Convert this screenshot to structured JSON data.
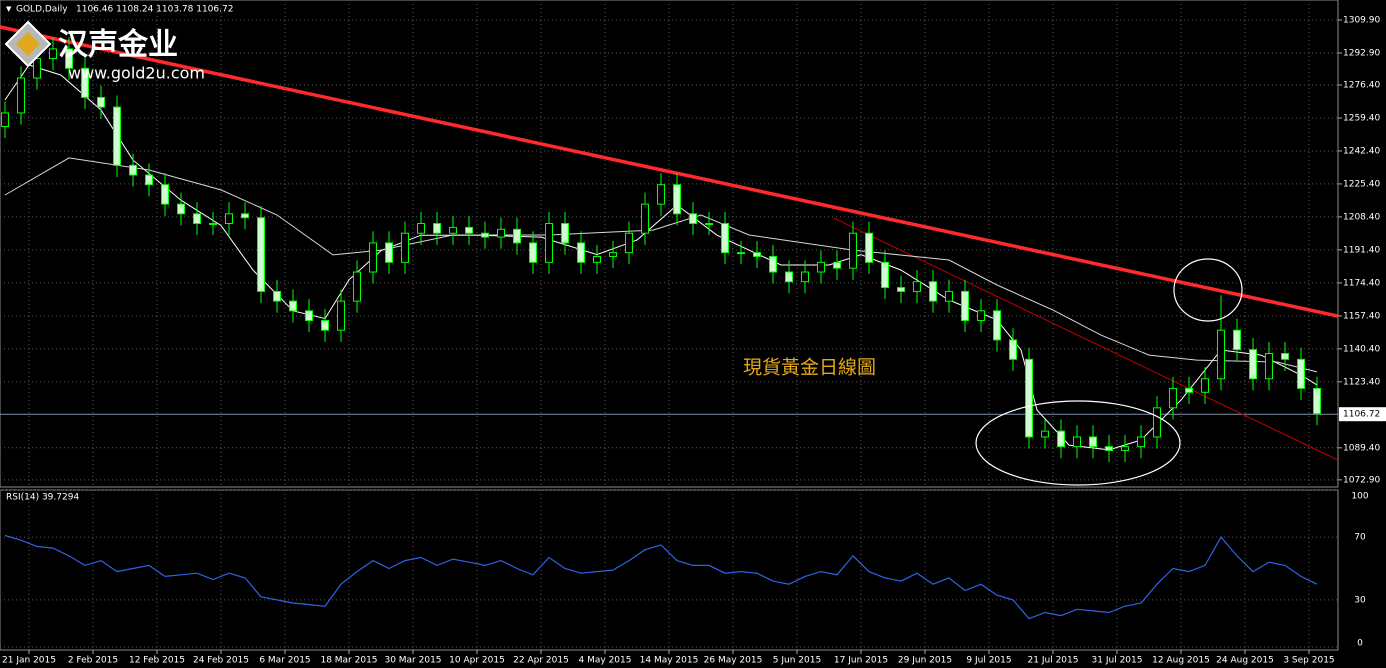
{
  "chart_data": [
    {
      "type": "candlestick",
      "title": "GOLD,Daily",
      "subtitle": "1106.46 1108.24 1103.78 1106.72",
      "annotation": "現貨黃金日線圖",
      "watermark": {
        "name": "汉声金业",
        "url": "www.gold2u.com"
      },
      "x": [
        0,
        2,
        4,
        6,
        8,
        10,
        12,
        14,
        16,
        18,
        20,
        22,
        24,
        26,
        28,
        30,
        32,
        34,
        36,
        38,
        40,
        42,
        44,
        46,
        48,
        50,
        52,
        54,
        56,
        58,
        60,
        62,
        64,
        66,
        68,
        70,
        72,
        74,
        76,
        78,
        80,
        82,
        84,
        86,
        88,
        90,
        92,
        94,
        96,
        98,
        100,
        102,
        104,
        106,
        108,
        110,
        112,
        114,
        116,
        118,
        120,
        122,
        124,
        126,
        128,
        130,
        132,
        134,
        136,
        138,
        140,
        142,
        144,
        146,
        148,
        150,
        152,
        154,
        156,
        158,
        160,
        162,
        164
      ],
      "open": [
        1255,
        1262,
        1280,
        1290,
        1295,
        1285,
        1270,
        1265,
        1235,
        1230,
        1225,
        1215,
        1210,
        1205,
        1205,
        1210,
        1208,
        1170,
        1165,
        1160,
        1155,
        1150,
        1165,
        1180,
        1195,
        1185,
        1200,
        1205,
        1200,
        1203,
        1200,
        1198,
        1202,
        1195,
        1185,
        1205,
        1195,
        1185,
        1188,
        1190,
        1200,
        1215,
        1225,
        1210,
        1205,
        1205,
        1190,
        1190,
        1188,
        1180,
        1175,
        1180,
        1185,
        1182,
        1200,
        1185,
        1172,
        1170,
        1175,
        1165,
        1170,
        1155,
        1160,
        1145,
        1135,
        1095,
        1098,
        1090,
        1095,
        1090,
        1088,
        1090,
        1095,
        1110,
        1120,
        1118,
        1125,
        1150,
        1140,
        1125,
        1138,
        1135,
        1120
      ],
      "high": [
        1268,
        1286,
        1296,
        1301,
        1301,
        1291,
        1276,
        1271,
        1241,
        1236,
        1231,
        1221,
        1216,
        1211,
        1216,
        1216,
        1214,
        1176,
        1171,
        1166,
        1161,
        1171,
        1186,
        1201,
        1201,
        1206,
        1211,
        1211,
        1209,
        1209,
        1206,
        1208,
        1208,
        1201,
        1211,
        1211,
        1201,
        1194,
        1196,
        1206,
        1221,
        1231,
        1231,
        1216,
        1211,
        1211,
        1196,
        1196,
        1194,
        1186,
        1186,
        1191,
        1191,
        1206,
        1206,
        1191,
        1178,
        1181,
        1181,
        1176,
        1176,
        1166,
        1166,
        1151,
        1141,
        1104,
        1104,
        1101,
        1101,
        1096,
        1096,
        1101,
        1116,
        1126,
        1126,
        1131,
        1168,
        1156,
        1146,
        1144,
        1144,
        1141,
        1126
      ],
      "low": [
        1249,
        1256,
        1274,
        1284,
        1279,
        1264,
        1259,
        1229,
        1224,
        1219,
        1209,
        1204,
        1199,
        1199,
        1199,
        1202,
        1164,
        1159,
        1154,
        1149,
        1144,
        1144,
        1159,
        1174,
        1179,
        1179,
        1194,
        1194,
        1194,
        1194,
        1192,
        1192,
        1189,
        1179,
        1179,
        1189,
        1179,
        1179,
        1182,
        1184,
        1194,
        1209,
        1204,
        1199,
        1199,
        1184,
        1184,
        1182,
        1174,
        1169,
        1169,
        1174,
        1176,
        1176,
        1179,
        1166,
        1164,
        1164,
        1159,
        1159,
        1149,
        1149,
        1139,
        1129,
        1089,
        1089,
        1084,
        1084,
        1084,
        1082,
        1082,
        1084,
        1089,
        1104,
        1112,
        1112,
        1119,
        1134,
        1119,
        1119,
        1129,
        1114,
        1101
      ],
      "close": [
        1262,
        1280,
        1290,
        1295,
        1285,
        1270,
        1265,
        1235,
        1230,
        1225,
        1215,
        1210,
        1205,
        1205,
        1210,
        1208,
        1170,
        1165,
        1160,
        1155,
        1150,
        1165,
        1180,
        1195,
        1185,
        1200,
        1205,
        1200,
        1203,
        1200,
        1198,
        1202,
        1195,
        1185,
        1205,
        1195,
        1185,
        1188,
        1190,
        1200,
        1215,
        1225,
        1210,
        1205,
        1205,
        1190,
        1190,
        1188,
        1180,
        1175,
        1180,
        1185,
        1182,
        1200,
        1185,
        1172,
        1170,
        1175,
        1165,
        1170,
        1155,
        1160,
        1145,
        1135,
        1095,
        1098,
        1090,
        1095,
        1090,
        1088,
        1090,
        1095,
        1110,
        1120,
        1118,
        1125,
        1150,
        1140,
        1125,
        1138,
        1135,
        1120,
        1107
      ],
      "up_color": "#000000",
      "down_color": "#ccffcc",
      "wick_color": "#00ff00",
      "ma": [
        {
          "color": "#ffffff",
          "x": [
            0,
            3,
            7,
            12,
            16,
            22,
            27,
            31,
            36,
            40,
            43,
            47,
            52,
            59,
            67,
            74,
            79,
            84,
            89,
            97,
            103,
            107,
            112,
            118,
            124,
            127,
            129,
            133,
            138,
            142,
            147,
            152,
            157,
            162,
            164
          ],
          "values": [
            1268.7,
            1286.7,
            1281.5,
            1263.5,
            1237.7,
            1217,
            1204,
            1181,
            1160,
            1156,
            1176,
            1191,
            1199,
            1199,
            1198,
            1189,
            1196.5,
            1214.5,
            1199,
            1183.6,
            1183.6,
            1189,
            1181,
            1165.6,
            1155.3,
            1139.8,
            1108.9,
            1090.8,
            1088.3,
            1093.4,
            1114,
            1139.8,
            1137.2,
            1126.9,
            1121.8
          ]
        },
        {
          "color": "#d8d8d8",
          "x": [
            0,
            8,
            18,
            27,
            34,
            41,
            47,
            56,
            68,
            81,
            87,
            93,
            106,
            118,
            124,
            131,
            137,
            143,
            149,
            159,
            164
          ],
          "values": [
            1219.7,
            1238.8,
            1232.6,
            1222.3,
            1209.4,
            1188.8,
            1191.3,
            1199.1,
            1199.1,
            1201.6,
            1209.4,
            1199.1,
            1191.3,
            1186.2,
            1173.3,
            1160.4,
            1147.5,
            1137.2,
            1134.6,
            1133.6,
            1128.5
          ]
        }
      ],
      "trendlines": [
        {
          "color": "#ff2a2a",
          "x": [
            -0.6,
            166.6
          ],
          "values": [
            1306.3,
            1157.3
          ]
        },
        {
          "color": "#c00000",
          "x": [
            103.6,
            166.6
          ],
          "values": [
            1207.8,
            1083.1
          ]
        }
      ],
      "last_price": 1106.72,
      "xlim": [
        -0.625,
        166.625
      ],
      "ylim": [
        1069.2,
        1320.2
      ],
      "yticks": [
        {
          "value": 1309.9,
          "label": "1309.90"
        },
        {
          "value": 1292.9,
          "label": "1292.90"
        },
        {
          "value": 1276.4,
          "label": "1276.40"
        },
        {
          "value": 1259.4,
          "label": "1259.40"
        },
        {
          "value": 1242.4,
          "label": "1242.40"
        },
        {
          "value": 1225.4,
          "label": "1225.40"
        },
        {
          "value": 1208.4,
          "label": "1208.40"
        },
        {
          "value": 1191.4,
          "label": "1191.40"
        },
        {
          "value": 1174.4,
          "label": "1174.40"
        },
        {
          "value": 1157.4,
          "label": "1157.40"
        },
        {
          "value": 1140.4,
          "label": "1140.40"
        },
        {
          "value": 1123.4,
          "label": "1123.40"
        },
        {
          "value": 1089.4,
          "label": "1089.40"
        },
        {
          "value": 1072.9,
          "label": "1072.90"
        }
      ],
      "xticks": [
        {
          "value": 3,
          "label": "21 Jan 2015"
        },
        {
          "value": 11,
          "label": "2 Feb 2015"
        },
        {
          "value": 19,
          "label": "12 Feb 2015"
        },
        {
          "value": 27,
          "label": "24 Feb 2015"
        },
        {
          "value": 35,
          "label": "6 Mar 2015"
        },
        {
          "value": 43,
          "label": "18 Mar 2015"
        },
        {
          "value": 51,
          "label": "30 Mar 2015"
        },
        {
          "value": 59,
          "label": "10 Apr 2015"
        },
        {
          "value": 67,
          "label": "22 Apr 2015"
        },
        {
          "value": 75,
          "label": "4 May 2015"
        },
        {
          "value": 83,
          "label": "14 May 2015"
        },
        {
          "value": 91,
          "label": "26 May 2015"
        },
        {
          "value": 99,
          "label": "5 Jun 2015"
        },
        {
          "value": 107,
          "label": "17 Jun 2015"
        },
        {
          "value": 115,
          "label": "29 Jun 2015"
        },
        {
          "value": 123,
          "label": "9 Jul 2015"
        },
        {
          "value": 131,
          "label": "21 Jul 2015"
        },
        {
          "value": 139,
          "label": "31 Jul 2015"
        },
        {
          "value": 147,
          "label": "12 Aug 2015"
        },
        {
          "value": 155,
          "label": "24 Aug 2015"
        },
        {
          "value": 163,
          "label": "3 Sep 2015"
        }
      ],
      "grid": true
    },
    {
      "type": "line",
      "title": "RSI(14) 39.7294",
      "color": "#2f62e6",
      "x": [
        0,
        2,
        4,
        6,
        8,
        10,
        12,
        14,
        16,
        18,
        20,
        22,
        24,
        26,
        28,
        30,
        32,
        34,
        36,
        38,
        40,
        42,
        44,
        46,
        48,
        50,
        52,
        54,
        56,
        58,
        60,
        62,
        64,
        66,
        68,
        70,
        72,
        74,
        76,
        78,
        80,
        82,
        84,
        86,
        88,
        90,
        92,
        94,
        96,
        98,
        100,
        102,
        104,
        106,
        108,
        110,
        112,
        114,
        116,
        118,
        120,
        122,
        124,
        126,
        128,
        130,
        132,
        134,
        136,
        138,
        140,
        142,
        144,
        146,
        148,
        150,
        152,
        154,
        156,
        158,
        160,
        162,
        164
      ],
      "values": [
        71,
        68,
        64,
        63,
        58,
        52,
        55,
        48,
        50,
        52,
        45,
        46,
        47,
        43,
        47,
        44,
        32,
        30,
        28,
        27,
        26,
        40,
        48,
        55,
        50,
        55,
        57,
        52,
        56,
        54,
        52,
        55,
        50,
        46,
        57,
        50,
        47,
        48,
        49,
        55,
        62,
        65,
        55,
        52,
        52,
        47,
        48,
        47,
        42,
        40,
        45,
        48,
        46,
        58,
        48,
        44,
        42,
        47,
        40,
        44,
        36,
        40,
        33,
        30,
        18,
        22,
        20,
        24,
        23,
        22,
        26,
        28,
        40,
        50,
        48,
        52,
        70,
        58,
        48,
        54,
        52,
        45,
        40
      ],
      "ylim": [
        0,
        100
      ],
      "yticks": [
        0,
        30,
        70,
        100
      ],
      "grid": true
    }
  ]
}
